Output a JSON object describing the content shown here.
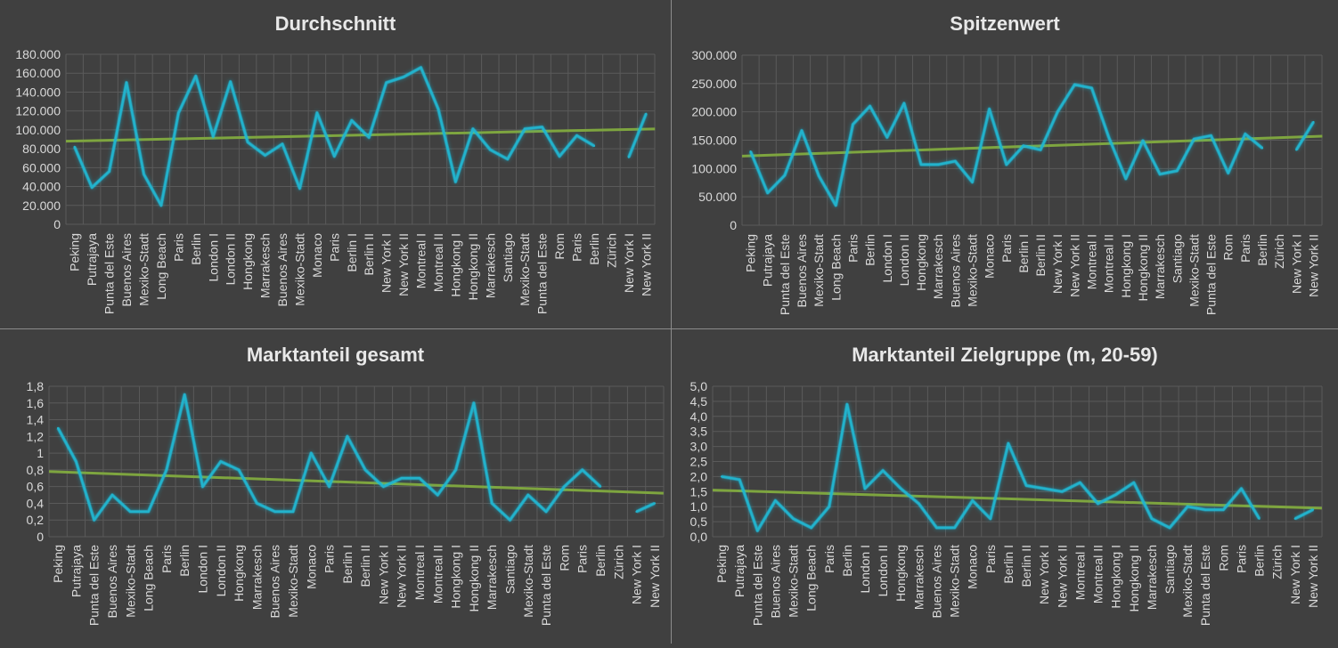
{
  "colors": {
    "background": "#404040",
    "line": "#22b3cc",
    "glow": "#15d5ff",
    "trend": "#7ea53f",
    "grid": "#5a5a5a",
    "text": "#d9d9d9",
    "title": "#e8e8e8"
  },
  "chart_data": [
    {
      "type": "line",
      "title": "Durchschnitt",
      "categories": [
        "Peking",
        "Putrajaya",
        "Punta del Este",
        "Buenos Aires",
        "Mexiko-Stadt",
        "Long Beach",
        "Paris",
        "Berlin",
        "London I",
        "London II",
        "Hongkong",
        "Marrakesch",
        "Buenos Aires",
        "Mexiko-Stadt",
        "Monaco",
        "Paris",
        "Berlin I",
        "Berlin II",
        "New York I",
        "New York II",
        "Montreal I",
        "Montreal II",
        "Hongkong I",
        "Hongkong II",
        "Marrakesch",
        "Santiago",
        "Mexiko-Stadt",
        "Punta del Este",
        "Rom",
        "Paris",
        "Berlin",
        "Zürich",
        "New York I",
        "New York II"
      ],
      "series": [
        {
          "values": [
            82000,
            39000,
            56000,
            150000,
            53000,
            20000,
            118000,
            157000,
            93000,
            151000,
            87000,
            73000,
            85000,
            38000,
            118000,
            72000,
            110000,
            92000,
            150000,
            156000,
            166000,
            122000,
            45000,
            101000,
            79000,
            69000,
            101000,
            103000,
            72000,
            94000,
            83000,
            null,
            71000,
            117000
          ]
        }
      ],
      "trend": [
        88000,
        101000
      ],
      "ylim": [
        0,
        180000
      ],
      "yticks": [
        0,
        20000,
        40000,
        60000,
        80000,
        100000,
        120000,
        140000,
        160000,
        180000
      ],
      "ytick_labels": [
        "0",
        "20.000",
        "40.000",
        "60.000",
        "80.000",
        "100.000",
        "120.000",
        "140.000",
        "160.000",
        "180.000"
      ],
      "grid": true
    },
    {
      "type": "line",
      "title": "Spitzenwert",
      "categories": [
        "Peking",
        "Putrajaya",
        "Punta del Este",
        "Buenos Aires",
        "Mexiko-Stadt",
        "Long Beach",
        "Paris",
        "Berlin",
        "London I",
        "London II",
        "Hongkong",
        "Marrakesch",
        "Buenos Aires",
        "Mexiko-Stadt",
        "Monaco",
        "Paris",
        "Berlin I",
        "Berlin II",
        "New York I",
        "New York II",
        "Montreal I",
        "Montreal II",
        "Hongkong I",
        "Hongkong II",
        "Marrakesch",
        "Santiago",
        "Mexiko-Stadt",
        "Punta del Este",
        "Rom",
        "Paris",
        "Berlin",
        "Zürich",
        "New York I",
        "New York II"
      ],
      "series": [
        {
          "values": [
            130000,
            57000,
            88000,
            167000,
            87000,
            35000,
            178000,
            210000,
            155000,
            215000,
            107000,
            107000,
            113000,
            76000,
            205000,
            107000,
            140000,
            133000,
            200000,
            248000,
            242000,
            155000,
            82000,
            149000,
            90000,
            96000,
            152000,
            158000,
            92000,
            161000,
            136000,
            null,
            133000,
            182000
          ]
        }
      ],
      "trend": [
        122000,
        157000
      ],
      "ylim": [
        0,
        300000
      ],
      "yticks": [
        0,
        50000,
        100000,
        150000,
        200000,
        250000,
        300000
      ],
      "ytick_labels": [
        "0",
        "50.000",
        "100.000",
        "150.000",
        "200.000",
        "250.000",
        "300.000"
      ],
      "grid": true
    },
    {
      "type": "line",
      "title": "Marktanteil gesamt",
      "categories": [
        "Peking",
        "Putrajaya",
        "Punta del Este",
        "Buenos Aires",
        "Mexiko-Stadt",
        "Long Beach",
        "Paris",
        "Berlin",
        "London I",
        "London II",
        "Hongkong",
        "Marrakesch",
        "Buenos Aires",
        "Mexiko-Stadt",
        "Monaco",
        "Paris",
        "Berlin I",
        "Berlin II",
        "New York I",
        "New York II",
        "Montreal I",
        "Montreal II",
        "Hongkong I",
        "Hongkong II",
        "Marrakesch",
        "Santiago",
        "Mexiko-Stadt",
        "Punta del Este",
        "Rom",
        "Paris",
        "Berlin",
        "Zürich",
        "New York I",
        "New York II"
      ],
      "series": [
        {
          "values": [
            1.3,
            0.9,
            0.2,
            0.5,
            0.3,
            0.3,
            0.8,
            1.7,
            0.6,
            0.9,
            0.8,
            0.4,
            0.3,
            0.3,
            1.0,
            0.6,
            1.2,
            0.8,
            0.6,
            0.7,
            0.7,
            0.5,
            0.8,
            1.6,
            0.4,
            0.2,
            0.5,
            0.3,
            0.6,
            0.8,
            0.6,
            null,
            0.3,
            0.4
          ]
        }
      ],
      "trend": [
        0.78,
        0.52
      ],
      "ylim": [
        0,
        1.8
      ],
      "yticks": [
        0,
        0.2,
        0.4,
        0.6,
        0.8,
        1,
        1.2,
        1.4,
        1.6,
        1.8
      ],
      "ytick_labels": [
        "0",
        "0,2",
        "0,4",
        "0,6",
        "0,8",
        "1",
        "1,2",
        "1,4",
        "1,6",
        "1,8"
      ],
      "grid": true
    },
    {
      "type": "line",
      "title": "Marktanteil Zielgruppe (m, 20-59)",
      "categories": [
        "Peking",
        "Putrajaya",
        "Punta del Este",
        "Buenos Aires",
        "Mexiko-Stadt",
        "Long Beach",
        "Paris",
        "Berlin",
        "London I",
        "London II",
        "Hongkong",
        "Marrakesch",
        "Buenos Aires",
        "Mexiko-Stadt",
        "Monaco",
        "Paris",
        "Berlin I",
        "Berlin II",
        "New York I",
        "New York II",
        "Montreal I",
        "Montreal II",
        "Hongkong I",
        "Hongkong II",
        "Marrakesch",
        "Santiago",
        "Mexiko-Stadt",
        "Punta del Este",
        "Rom",
        "Paris",
        "Berlin",
        "Zürich",
        "New York I",
        "New York II"
      ],
      "series": [
        {
          "values": [
            2.0,
            1.9,
            0.2,
            1.2,
            0.6,
            0.3,
            1.0,
            4.4,
            1.6,
            2.2,
            1.6,
            1.1,
            0.3,
            0.3,
            1.2,
            0.6,
            3.1,
            1.7,
            1.6,
            1.5,
            1.8,
            1.1,
            1.4,
            1.8,
            0.6,
            0.3,
            1.0,
            0.9,
            0.9,
            1.6,
            0.6,
            null,
            0.6,
            0.9
          ]
        }
      ],
      "trend": [
        1.55,
        0.95
      ],
      "ylim": [
        0,
        5
      ],
      "yticks": [
        0,
        0.5,
        1,
        1.5,
        2,
        2.5,
        3,
        3.5,
        4,
        4.5,
        5
      ],
      "ytick_labels": [
        "0,0",
        "0,5",
        "1,0",
        "1,5",
        "2,0",
        "2,5",
        "3,0",
        "3,5",
        "4,0",
        "4,5",
        "5,0"
      ],
      "grid": true
    }
  ]
}
